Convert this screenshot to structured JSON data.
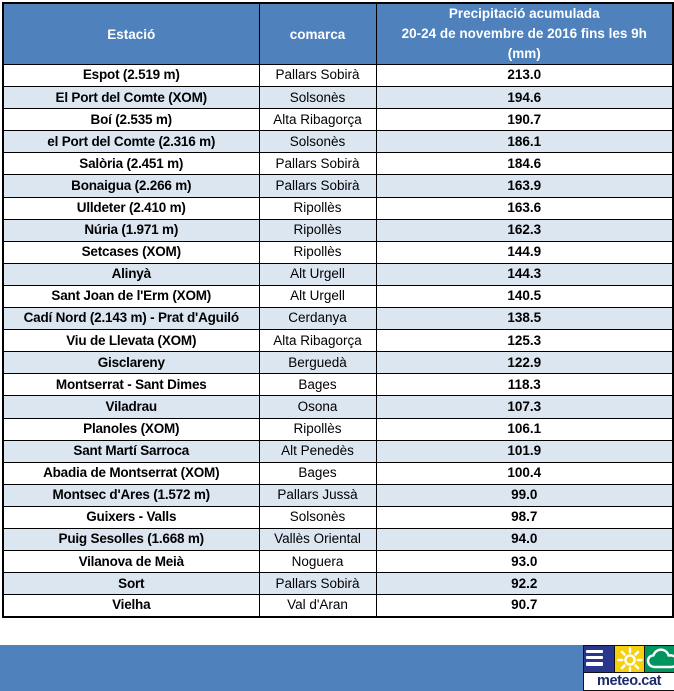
{
  "header": {
    "col_station": "Estació",
    "col_comarca": "comarca",
    "col_precip_line1": "Precipitació acumulada",
    "col_precip_line2": "20-24 de novembre de 2016 fins les 9h",
    "col_precip_line3": "(mm)"
  },
  "table": {
    "rows": [
      {
        "station": "Espot (2.519 m)",
        "comarca": "Pallars Sobirà",
        "value": "213.0"
      },
      {
        "station": "El Port del Comte (XOM)",
        "comarca": "Solsonès",
        "value": "194.6"
      },
      {
        "station": "Boí (2.535 m)",
        "comarca": "Alta Ribagorça",
        "value": "190.7"
      },
      {
        "station": "el Port del Comte (2.316 m)",
        "comarca": "Solsonès",
        "value": "186.1"
      },
      {
        "station": "Salòria (2.451 m)",
        "comarca": "Pallars Sobirà",
        "value": "184.6"
      },
      {
        "station": "Bonaigua (2.266 m)",
        "comarca": "Pallars Sobirà",
        "value": "163.9"
      },
      {
        "station": "Ulldeter (2.410 m)",
        "comarca": "Ripollès",
        "value": "163.6"
      },
      {
        "station": "Núria (1.971 m)",
        "comarca": "Ripollès",
        "value": "162.3"
      },
      {
        "station": "Setcases (XOM)",
        "comarca": "Ripollès",
        "value": "144.9"
      },
      {
        "station": "Alinyà",
        "comarca": "Alt Urgell",
        "value": "144.3"
      },
      {
        "station": "Sant Joan de l'Erm (XOM)",
        "comarca": "Alt Urgell",
        "value": "140.5"
      },
      {
        "station": "Cadí Nord (2.143 m) - Prat d'Aguiló",
        "comarca": "Cerdanya",
        "value": "138.5"
      },
      {
        "station": "Viu de Llevata (XOM)",
        "comarca": "Alta Ribagorça",
        "value": "125.3"
      },
      {
        "station": "Gisclareny",
        "comarca": "Berguedà",
        "value": "122.9"
      },
      {
        "station": "Montserrat - Sant Dimes",
        "comarca": "Bages",
        "value": "118.3"
      },
      {
        "station": "Viladrau",
        "comarca": "Osona",
        "value": "107.3"
      },
      {
        "station": "Planoles (XOM)",
        "comarca": "Ripollès",
        "value": "106.1"
      },
      {
        "station": "Sant Martí Sarroca",
        "comarca": "Alt Penedès",
        "value": "101.9"
      },
      {
        "station": "Abadia de Montserrat  (XOM)",
        "comarca": "Bages",
        "value": "100.4"
      },
      {
        "station": "Montsec d'Ares (1.572 m)",
        "comarca": "Pallars Jussà",
        "value": "99.0"
      },
      {
        "station": "Guixers - Valls",
        "comarca": "Solsonès",
        "value": "98.7"
      },
      {
        "station": "Puig Sesolles (1.668 m)",
        "comarca": "Vallès Oriental",
        "value": "94.0"
      },
      {
        "station": "Vilanova de Meià",
        "comarca": "Noguera",
        "value": "93.0"
      },
      {
        "station": "Sort",
        "comarca": "Pallars Sobirà",
        "value": "92.2"
      },
      {
        "station": "Vielha",
        "comarca": "Val d'Aran",
        "value": "90.7"
      }
    ]
  },
  "footer": {
    "logo_text": "meteo.cat",
    "logo_icons": [
      "menu-lines-icon",
      "sun-icon",
      "cloud-icon"
    ]
  },
  "colors": {
    "header_blue": "#4F81BD",
    "band_blue": "#DCE6F1",
    "footer_blue": "#4F81BD",
    "border_black": "#000000",
    "logo_navy": "#28368E",
    "logo_yellow": "#F5D010",
    "logo_green": "#00955F",
    "logo_text_navy": "#1B2A6B"
  },
  "chart_data": {
    "type": "table",
    "title": "Precipitació acumulada 20-24 de novembre de 2016 fins les 9h (mm)",
    "columns": [
      "Estació",
      "comarca",
      "Precipitació acumulada 20-24 de novembre de 2016 fins les 9h (mm)"
    ],
    "rows": [
      [
        "Espot (2.519 m)",
        "Pallars Sobirà",
        213.0
      ],
      [
        "El Port del Comte (XOM)",
        "Solsonès",
        194.6
      ],
      [
        "Boí (2.535 m)",
        "Alta Ribagorça",
        190.7
      ],
      [
        "el Port del Comte (2.316 m)",
        "Solsonès",
        186.1
      ],
      [
        "Salòria (2.451 m)",
        "Pallars Sobirà",
        184.6
      ],
      [
        "Bonaigua (2.266 m)",
        "Pallars Sobirà",
        163.9
      ],
      [
        "Ulldeter (2.410 m)",
        "Ripollès",
        163.6
      ],
      [
        "Núria (1.971 m)",
        "Ripollès",
        162.3
      ],
      [
        "Setcases (XOM)",
        "Ripollès",
        144.9
      ],
      [
        "Alinyà",
        "Alt Urgell",
        144.3
      ],
      [
        "Sant Joan de l'Erm (XOM)",
        "Alt Urgell",
        140.5
      ],
      [
        "Cadí Nord (2.143 m) - Prat d'Aguiló",
        "Cerdanya",
        138.5
      ],
      [
        "Viu de Llevata (XOM)",
        "Alta Ribagorça",
        125.3
      ],
      [
        "Gisclareny",
        "Berguedà",
        122.9
      ],
      [
        "Montserrat - Sant Dimes",
        "Bages",
        118.3
      ],
      [
        "Viladrau",
        "Osona",
        107.3
      ],
      [
        "Planoles (XOM)",
        "Ripollès",
        106.1
      ],
      [
        "Sant Martí Sarroca",
        "Alt Penedès",
        101.9
      ],
      [
        "Abadia de Montserrat  (XOM)",
        "Bages",
        100.4
      ],
      [
        "Montsec d'Ares (1.572 m)",
        "Pallars Jussà",
        99.0
      ],
      [
        "Guixers - Valls",
        "Solsonès",
        98.7
      ],
      [
        "Puig Sesolles (1.668 m)",
        "Vallès Oriental",
        94.0
      ],
      [
        "Vilanova de Meià",
        "Noguera",
        93.0
      ],
      [
        "Sort",
        "Pallars Sobirà",
        92.2
      ],
      [
        "Vielha",
        "Val d'Aran",
        90.7
      ]
    ]
  }
}
